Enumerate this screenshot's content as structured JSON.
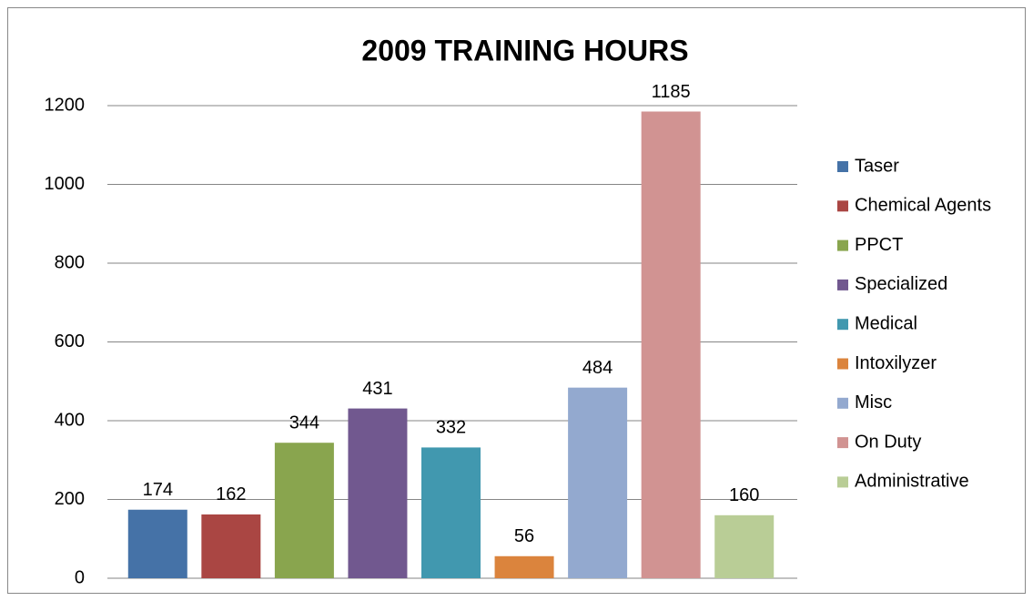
{
  "chart_data": {
    "type": "bar",
    "title": "2009 TRAINING HOURS",
    "series": [
      {
        "name": "Taser",
        "color": "#4572a7",
        "values": [
          174
        ]
      },
      {
        "name": "Chemical Agents",
        "color": "#aa4643",
        "values": [
          162
        ]
      },
      {
        "name": "PPCT",
        "color": "#89a54e",
        "values": [
          344
        ]
      },
      {
        "name": "Specialized",
        "color": "#71588f",
        "values": [
          431
        ]
      },
      {
        "name": "Medical",
        "color": "#4198af",
        "values": [
          332
        ]
      },
      {
        "name": "Intoxilyzer",
        "color": "#db843d",
        "values": [
          56
        ]
      },
      {
        "name": "Misc",
        "color": "#93a9cf",
        "values": [
          484
        ]
      },
      {
        "name": "On Duty",
        "color": "#d19392",
        "values": [
          1185
        ]
      },
      {
        "name": "Administrative",
        "color": "#b9cd96",
        "values": [
          160
        ]
      }
    ],
    "ylim": [
      0,
      1200
    ],
    "yticks": [
      0,
      200,
      400,
      600,
      800,
      1000,
      1200
    ],
    "grid": true,
    "legend": "right"
  }
}
